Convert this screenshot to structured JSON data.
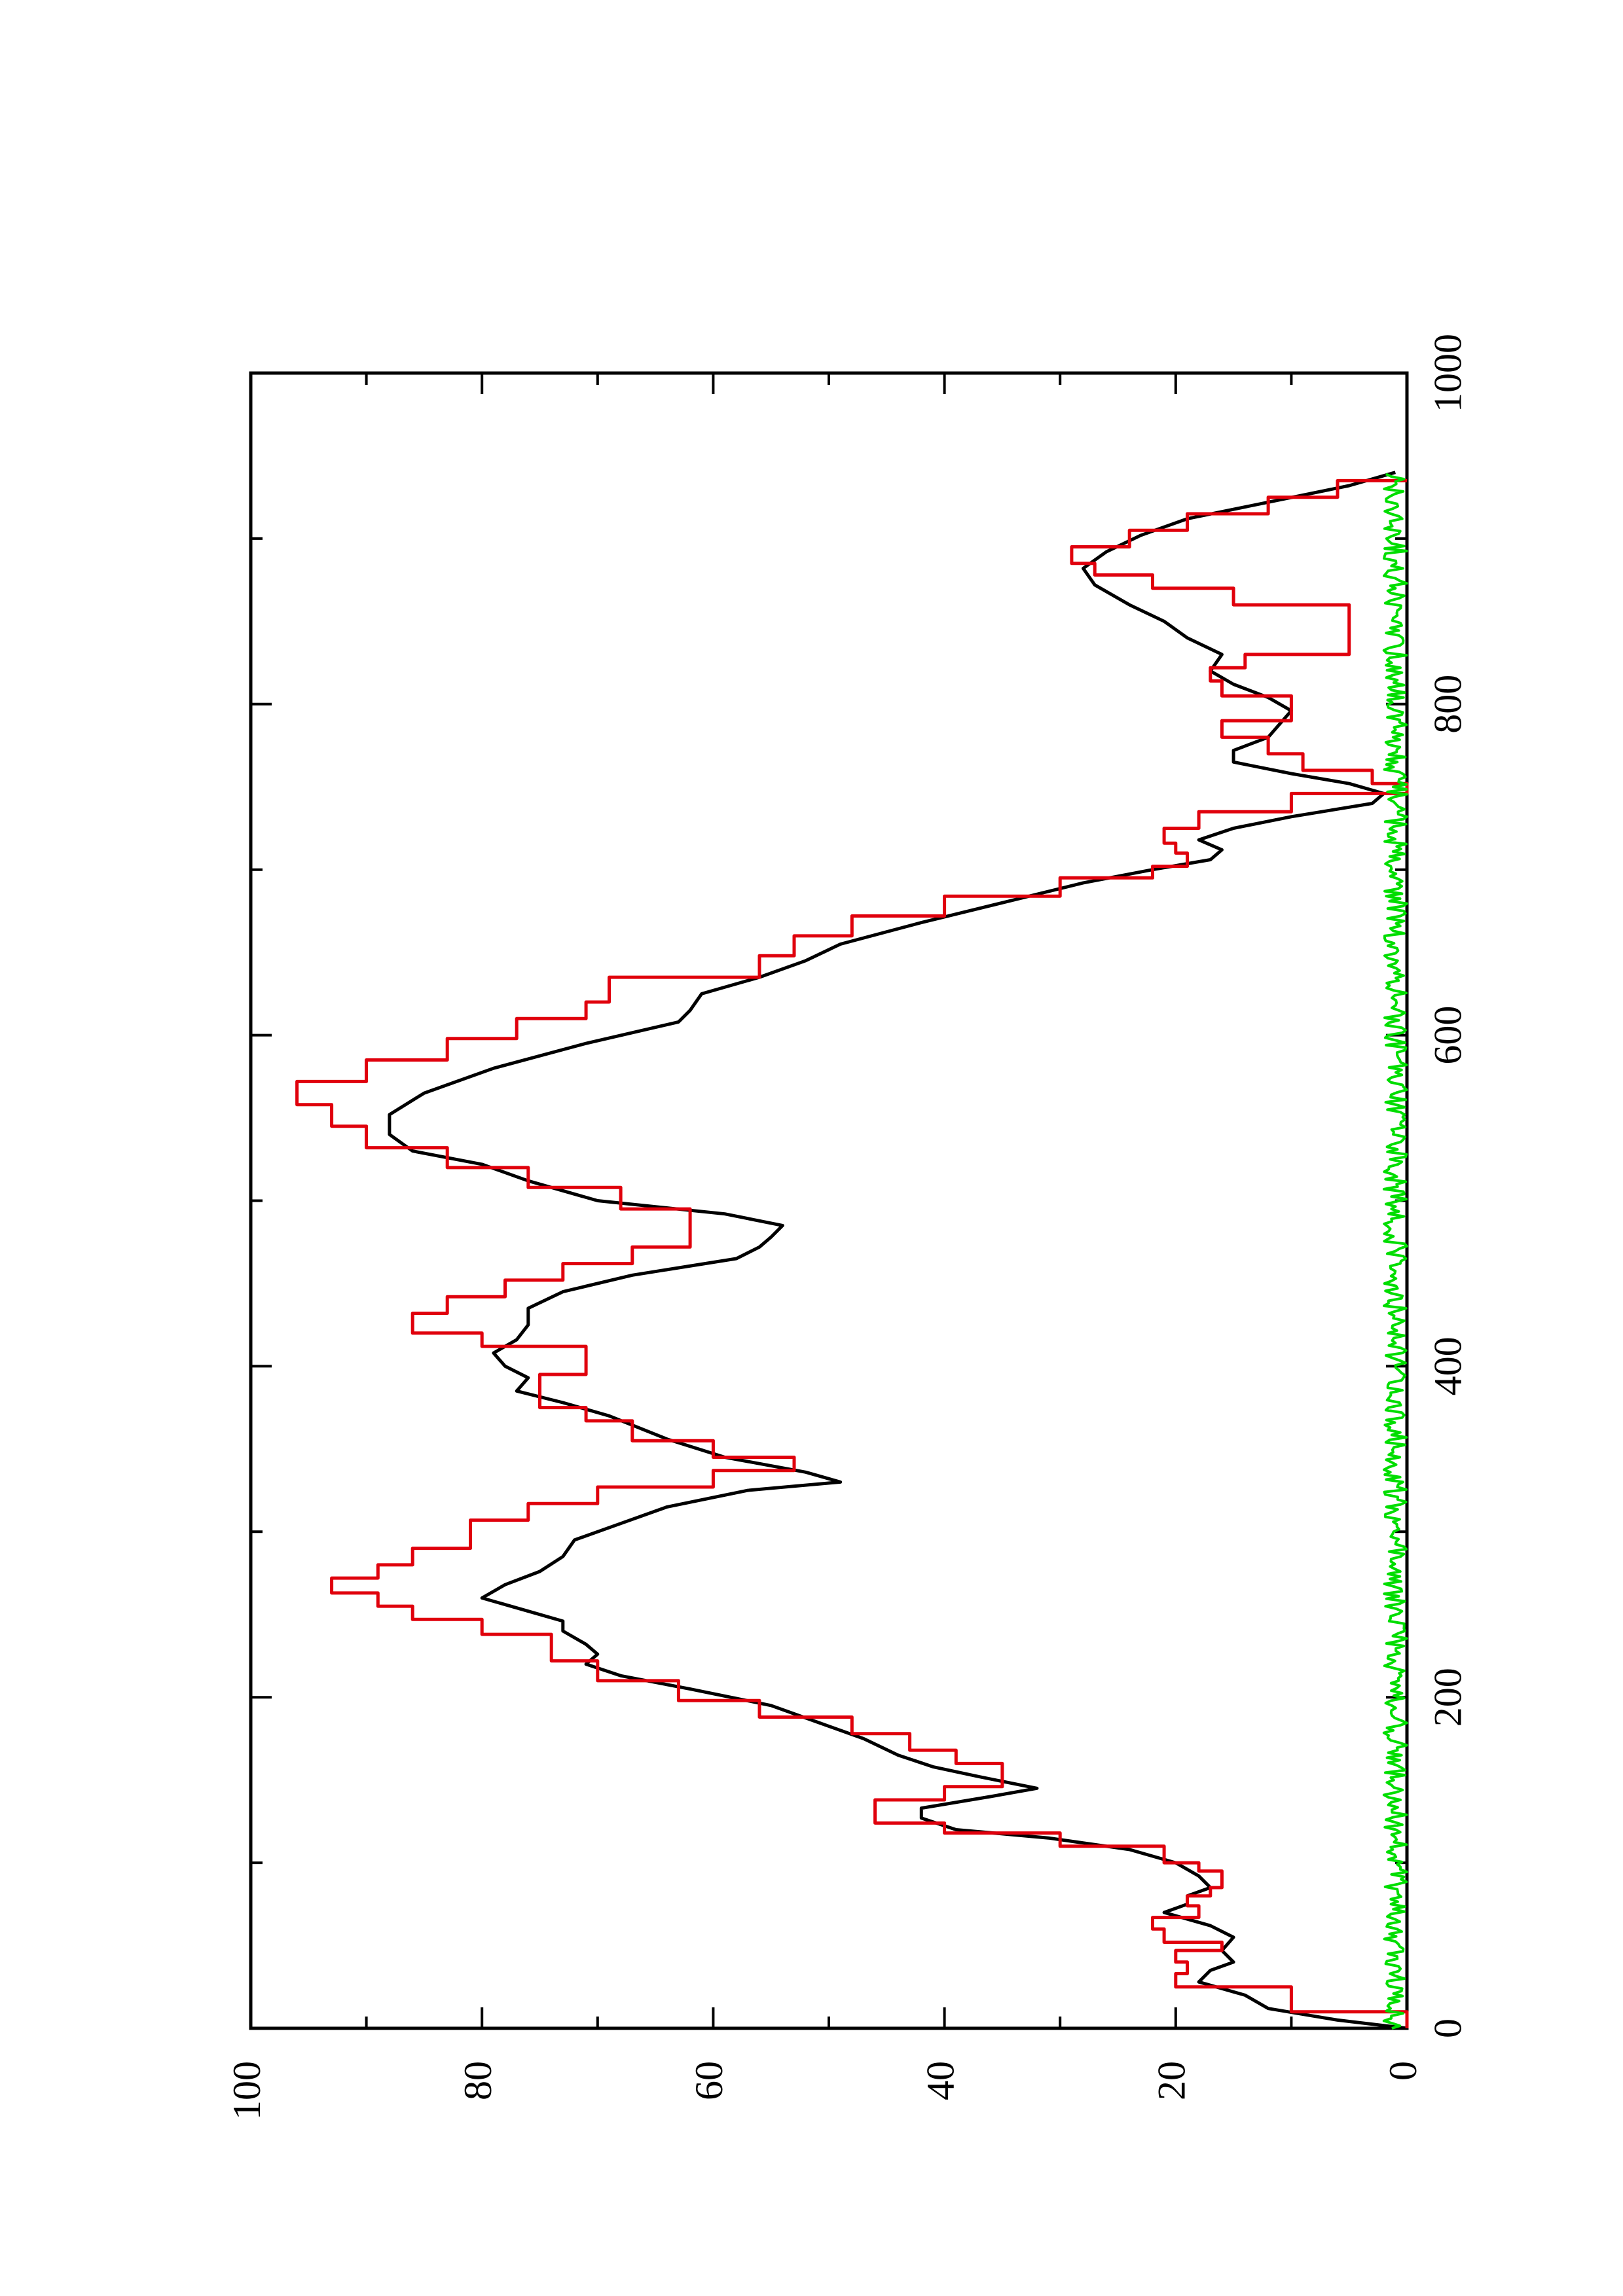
{
  "chart_data": {
    "type": "line",
    "orientation": "rotated-90-ccw",
    "title": "",
    "xlabel": "",
    "ylabel": "",
    "xlim": [
      0,
      1000
    ],
    "ylim": [
      0,
      100
    ],
    "x_ticks": [
      0,
      200,
      400,
      600,
      800,
      1000
    ],
    "x_minor_ticks": [
      100,
      300,
      500,
      700,
      900
    ],
    "y_ticks": [
      0,
      20,
      40,
      60,
      80,
      100
    ],
    "y_minor_ticks": [
      10,
      30,
      50,
      70,
      90
    ],
    "grid": false,
    "legend": "none",
    "series": [
      {
        "color": "#000000",
        "style": "smooth",
        "points": [
          [
            0,
            0
          ],
          [
            5,
            6
          ],
          [
            12,
            12
          ],
          [
            20,
            14
          ],
          [
            28,
            18
          ],
          [
            35,
            17
          ],
          [
            40,
            15
          ],
          [
            47,
            16
          ],
          [
            55,
            15
          ],
          [
            62,
            17
          ],
          [
            70,
            21
          ],
          [
            75,
            19
          ],
          [
            80,
            19
          ],
          [
            85,
            17
          ],
          [
            92,
            18
          ],
          [
            100,
            20
          ],
          [
            108,
            24
          ],
          [
            115,
            31
          ],
          [
            120,
            39
          ],
          [
            127,
            42
          ],
          [
            133,
            42
          ],
          [
            140,
            36
          ],
          [
            145,
            32
          ],
          [
            152,
            37
          ],
          [
            158,
            41
          ],
          [
            165,
            44
          ],
          [
            175,
            47
          ],
          [
            185,
            51
          ],
          [
            195,
            55
          ],
          [
            205,
            62
          ],
          [
            213,
            68
          ],
          [
            220,
            71
          ],
          [
            226,
            70
          ],
          [
            232,
            71
          ],
          [
            240,
            73
          ],
          [
            246,
            73
          ],
          [
            252,
            76
          ],
          [
            260,
            80
          ],
          [
            268,
            78
          ],
          [
            276,
            75
          ],
          [
            285,
            73
          ],
          [
            295,
            72
          ],
          [
            305,
            68
          ],
          [
            315,
            64
          ],
          [
            325,
            57
          ],
          [
            330,
            49
          ],
          [
            336,
            52
          ],
          [
            345,
            59
          ],
          [
            356,
            64
          ],
          [
            370,
            69
          ],
          [
            378,
            73
          ],
          [
            385,
            77
          ],
          [
            393,
            76
          ],
          [
            400,
            78
          ],
          [
            408,
            79
          ],
          [
            416,
            77
          ],
          [
            425,
            76
          ],
          [
            435,
            76
          ],
          [
            445,
            73
          ],
          [
            455,
            67
          ],
          [
            465,
            58
          ],
          [
            472,
            56
          ],
          [
            478,
            55
          ],
          [
            485,
            54
          ],
          [
            492,
            59
          ],
          [
            500,
            70
          ],
          [
            512,
            76
          ],
          [
            522,
            80
          ],
          [
            530,
            86
          ],
          [
            540,
            88
          ],
          [
            552,
            88
          ],
          [
            565,
            85
          ],
          [
            580,
            79
          ],
          [
            595,
            71
          ],
          [
            608,
            63
          ],
          [
            615,
            62
          ],
          [
            625,
            61
          ],
          [
            635,
            56
          ],
          [
            645,
            52
          ],
          [
            655,
            49
          ],
          [
            668,
            42
          ],
          [
            680,
            35
          ],
          [
            692,
            28
          ],
          [
            700,
            22
          ],
          [
            706,
            17
          ],
          [
            712,
            16
          ],
          [
            718,
            18
          ],
          [
            725,
            15
          ],
          [
            732,
            10
          ],
          [
            740,
            3
          ],
          [
            746,
            2
          ],
          [
            752,
            5
          ],
          [
            758,
            10
          ],
          [
            765,
            15
          ],
          [
            772,
            15
          ],
          [
            780,
            12
          ],
          [
            788,
            11
          ],
          [
            796,
            10
          ],
          [
            804,
            12
          ],
          [
            812,
            15
          ],
          [
            820,
            17
          ],
          [
            830,
            16
          ],
          [
            840,
            19
          ],
          [
            850,
            21
          ],
          [
            860,
            24
          ],
          [
            872,
            27
          ],
          [
            882,
            28
          ],
          [
            892,
            26
          ],
          [
            902,
            23
          ],
          [
            912,
            19
          ],
          [
            922,
            12
          ],
          [
            932,
            5
          ],
          [
            940,
            1
          ]
        ]
      },
      {
        "color": "#e0000c",
        "style": "step",
        "points": [
          [
            0,
            0
          ],
          [
            10,
            10
          ],
          [
            25,
            20
          ],
          [
            33,
            19
          ],
          [
            40,
            20
          ],
          [
            47,
            16
          ],
          [
            52,
            21
          ],
          [
            60,
            22
          ],
          [
            67,
            18
          ],
          [
            74,
            19
          ],
          [
            80,
            17
          ],
          [
            85,
            16
          ],
          [
            95,
            18
          ],
          [
            100,
            21
          ],
          [
            110,
            30
          ],
          [
            118,
            40
          ],
          [
            124,
            46
          ],
          [
            130,
            46
          ],
          [
            138,
            40
          ],
          [
            146,
            35
          ],
          [
            152,
            35
          ],
          [
            160,
            39
          ],
          [
            168,
            43
          ],
          [
            178,
            48
          ],
          [
            188,
            56
          ],
          [
            198,
            63
          ],
          [
            210,
            70
          ],
          [
            222,
            74
          ],
          [
            232,
            74
          ],
          [
            238,
            80
          ],
          [
            247,
            86
          ],
          [
            255,
            89
          ],
          [
            263,
            93
          ],
          [
            272,
            89
          ],
          [
            280,
            86
          ],
          [
            290,
            81
          ],
          [
            300,
            81
          ],
          [
            307,
            76
          ],
          [
            317,
            70
          ],
          [
            327,
            60
          ],
          [
            337,
            53
          ],
          [
            345,
            60
          ],
          [
            355,
            67
          ],
          [
            367,
            71
          ],
          [
            375,
            75
          ],
          [
            385,
            75
          ],
          [
            395,
            71
          ],
          [
            405,
            71
          ],
          [
            412,
            80
          ],
          [
            420,
            86
          ],
          [
            432,
            83
          ],
          [
            442,
            78
          ],
          [
            452,
            73
          ],
          [
            462,
            67
          ],
          [
            472,
            62
          ],
          [
            485,
            62
          ],
          [
            495,
            68
          ],
          [
            508,
            76
          ],
          [
            520,
            83
          ],
          [
            532,
            90
          ],
          [
            545,
            93
          ],
          [
            558,
            96
          ],
          [
            572,
            90
          ],
          [
            585,
            83
          ],
          [
            598,
            77
          ],
          [
            610,
            71
          ],
          [
            620,
            69
          ],
          [
            635,
            56
          ],
          [
            648,
            53
          ],
          [
            660,
            48
          ],
          [
            672,
            40
          ],
          [
            684,
            30
          ],
          [
            695,
            22
          ],
          [
            702,
            19
          ],
          [
            710,
            20
          ],
          [
            716,
            21
          ],
          [
            725,
            18
          ],
          [
            735,
            10
          ],
          [
            746,
            0
          ],
          [
            752,
            3
          ],
          [
            760,
            9
          ],
          [
            770,
            12
          ],
          [
            780,
            16
          ],
          [
            790,
            10
          ],
          [
            798,
            10
          ],
          [
            805,
            16
          ],
          [
            814,
            17
          ],
          [
            822,
            14
          ],
          [
            830,
            5
          ],
          [
            840,
            5
          ],
          [
            850,
            5
          ],
          [
            860,
            15
          ],
          [
            870,
            22
          ],
          [
            878,
            27
          ],
          [
            885,
            29
          ],
          [
            895,
            24
          ],
          [
            905,
            19
          ],
          [
            915,
            12
          ],
          [
            925,
            6
          ],
          [
            935,
            0
          ]
        ]
      },
      {
        "color": "#00dd00",
        "style": "noise",
        "x_range": [
          0,
          940
        ],
        "amplitude": 2
      }
    ]
  }
}
